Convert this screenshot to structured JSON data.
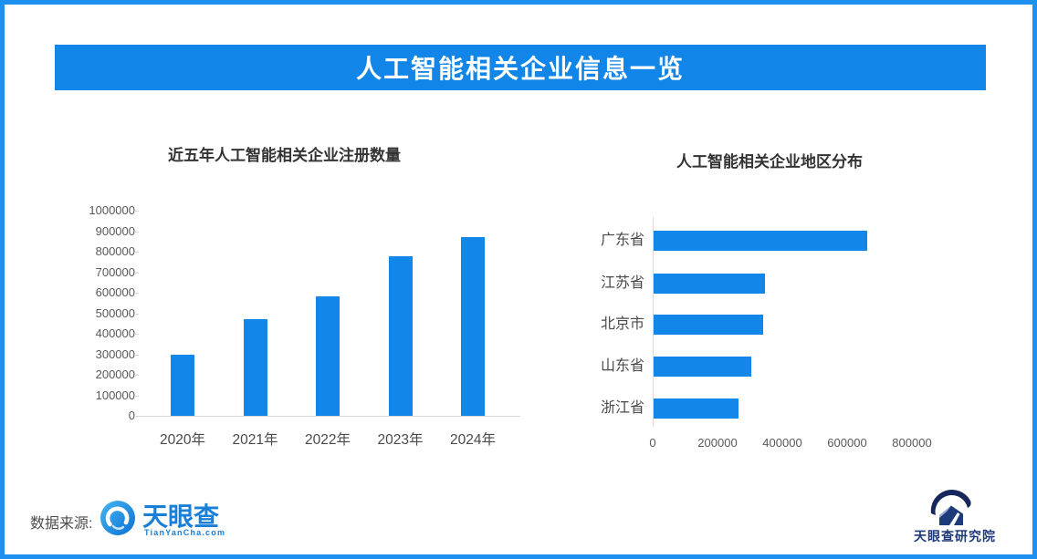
{
  "banner": {
    "title": "人工智能相关企业信息一览",
    "bg_color": "#1286e8",
    "text_color": "#ffffff"
  },
  "chart_data": [
    {
      "type": "bar",
      "orientation": "vertical",
      "title": "近五年人工智能相关企业注册数量",
      "categories": [
        "2020年",
        "2021年",
        "2022年",
        "2023年",
        "2024年"
      ],
      "values": [
        298000,
        473000,
        580000,
        778000,
        870000
      ],
      "ylim": [
        0,
        1000000
      ],
      "yticks": [
        0,
        100000,
        200000,
        300000,
        400000,
        500000,
        600000,
        700000,
        800000,
        900000,
        1000000
      ],
      "xlabel": "",
      "ylabel": "",
      "grid": false,
      "legend": "none",
      "bar_color": "#1287e9"
    },
    {
      "type": "bar",
      "orientation": "horizontal",
      "title": "人工智能相关企业地区分布",
      "categories": [
        "广东省",
        "江苏省",
        "北京市",
        "山东省",
        "浙江省"
      ],
      "values": [
        660000,
        345000,
        338000,
        300000,
        262000
      ],
      "xlim": [
        0,
        800000
      ],
      "xticks": [
        0,
        200000,
        400000,
        600000,
        800000
      ],
      "xlabel": "",
      "ylabel": "",
      "grid": false,
      "legend": "none",
      "bar_color": "#1287e9"
    }
  ],
  "footer": {
    "source_label": "数据来源:",
    "tianyancha_logo": {
      "wordmark": "天眼查",
      "domain": "TianYanCha.com",
      "icon": "eye-shutter-icon",
      "color": "#1a7fd6"
    },
    "research_institute": {
      "label": "天眼查研究院",
      "icon": "arc-house-icon",
      "color": "#1e3a78"
    }
  },
  "colors": {
    "frame": "#1e90f0",
    "axis_line": "#d9d9d9",
    "tick_text": "#595959",
    "label_text": "#4a4a4a",
    "chart_title_text": "#333333"
  }
}
